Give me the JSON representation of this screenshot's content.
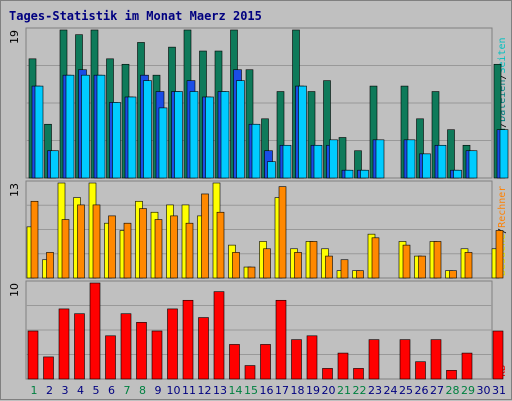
{
  "chart_data": {
    "type": "bar",
    "title": "Tages-Statistik im Monat Maerz 2015",
    "categories": [
      "1",
      "2",
      "3",
      "4",
      "5",
      "6",
      "7",
      "8",
      "9",
      "10",
      "11",
      "12",
      "13",
      "14",
      "15",
      "16",
      "17",
      "18",
      "19",
      "20",
      "21",
      "22",
      "23",
      "24",
      "25",
      "26",
      "27",
      "28",
      "29",
      "30",
      "31"
    ],
    "weekend_days": [
      "1",
      "7",
      "8",
      "14",
      "15",
      "21",
      "22",
      "28",
      "29"
    ],
    "panels": [
      {
        "id": "requests",
        "ymax": 19,
        "ymax_label": "19",
        "legend": [
          {
            "label": "Anfragen",
            "color": "#008060"
          },
          {
            "label": "/",
            "color": "#000000"
          },
          {
            "label": "Dateien",
            "color": "#008080"
          },
          {
            "label": "/",
            "color": "#000000"
          },
          {
            "label": "Seiten",
            "color": "#00c0c0"
          }
        ],
        "series": [
          {
            "name": "Anfragen",
            "color": "#0e7a5a",
            "values": [
              15.3,
              6.9,
              19,
              18.4,
              19,
              15.3,
              14.6,
              17.4,
              13.2,
              16.8,
              19,
              16.3,
              16.3,
              19,
              13.9,
              7.6,
              11.1,
              19,
              11.1,
              12.5,
              5.2,
              3.5,
              11.8,
              0,
              11.8,
              7.6,
              11.1,
              6.2,
              4.2,
              0,
              14.6
            ]
          },
          {
            "name": "Dateien",
            "color": "#1a4de6",
            "values": [
              11.8,
              3.5,
              13.2,
              13.9,
              13.2,
              9.7,
              10.4,
              13.2,
              11.1,
              11.1,
              12.5,
              10.4,
              11.1,
              13.9,
              6.9,
              3.5,
              4.2,
              11.8,
              4.2,
              4.2,
              1.0,
              1.0,
              4.9,
              0,
              4.9,
              3.1,
              4.2,
              1.0,
              3.5,
              0,
              6.2
            ]
          },
          {
            "name": "Seiten",
            "color": "#00ccff",
            "values": [
              11.8,
              3.5,
              13.2,
              13.2,
              13.2,
              9.7,
              10.4,
              12.5,
              9.0,
              11.1,
              11.1,
              10.4,
              11.1,
              12.5,
              6.9,
              2.1,
              4.2,
              11.8,
              4.2,
              4.9,
              1.0,
              1.0,
              4.9,
              0,
              4.9,
              3.1,
              4.2,
              1.0,
              3.5,
              0,
              6.2
            ]
          }
        ]
      },
      {
        "id": "visits",
        "ymax": 13,
        "ymax_label": "13",
        "legend": [
          {
            "label": "Besuche",
            "color": "#e0e000"
          },
          {
            "label": "/",
            "color": "#000000"
          },
          {
            "label": "Rechner",
            "color": "#ff8000"
          }
        ],
        "series": [
          {
            "name": "Besuche",
            "color": "#ffff00",
            "values": [
              7,
              2.5,
              13,
              11,
              13,
              7.5,
              6.5,
              10.5,
              9,
              10,
              10,
              8.5,
              13,
              4.5,
              1.5,
              5,
              11,
              4,
              5,
              4,
              1,
              1,
              6,
              0,
              5,
              3,
              5,
              1,
              4,
              0,
              4
            ]
          },
          {
            "name": "Rechner",
            "color": "#ff8800",
            "values": [
              10.5,
              3.5,
              8,
              10,
              10,
              8.5,
              7.5,
              9.5,
              8,
              8.5,
              7.5,
              11.5,
              9,
              3.5,
              1.5,
              4,
              12.5,
              3.5,
              5,
              3,
              2.5,
              1,
              5.5,
              0,
              4.5,
              3,
              5,
              1,
              3.5,
              0,
              6.5
            ]
          }
        ]
      },
      {
        "id": "kb",
        "ymax": 10,
        "ymax_label": "10",
        "legend": [
          {
            "label": "kB",
            "color": "#ff0000"
          }
        ],
        "series": [
          {
            "name": "kB",
            "color": "#ff0000",
            "values": [
              5,
              2.3,
              7.3,
              6.8,
              10,
              4.5,
              6.8,
              5.9,
              5,
              7.3,
              8.2,
              6.4,
              9.1,
              3.6,
              1.4,
              3.6,
              8.2,
              4.1,
              4.5,
              1.1,
              2.7,
              1.1,
              4.1,
              0,
              4.1,
              1.8,
              4.1,
              0.9,
              2.7,
              0,
              5
            ]
          }
        ]
      }
    ]
  }
}
